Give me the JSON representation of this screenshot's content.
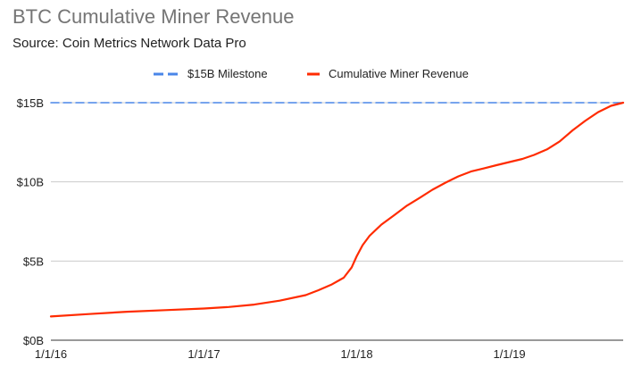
{
  "chart_data": {
    "type": "line",
    "title": "BTC Cumulative Miner Revenue",
    "subtitle": "Source: Coin Metrics Network Data Pro",
    "x_ticks": [
      "1/1/16",
      "1/1/17",
      "1/1/18",
      "1/1/19"
    ],
    "y_ticks": [
      "$0B",
      "$5B",
      "$10B",
      "$15B"
    ],
    "xlim": [
      "2016-01-01",
      "2019-09-30"
    ],
    "ylim": [
      0,
      15
    ],
    "grid": true,
    "legend_position": "top",
    "series": [
      {
        "name": "$15B Milestone",
        "style": "dashed",
        "color": "#4a86e8",
        "x": [
          "2016-01-01",
          "2019-09-30"
        ],
        "y": [
          15,
          15
        ]
      },
      {
        "name": "Cumulative Miner Revenue",
        "style": "solid",
        "color": "#ff2b00",
        "x": [
          "2016-01-01",
          "2016-04-01",
          "2016-07-01",
          "2016-10-01",
          "2017-01-01",
          "2017-03-01",
          "2017-05-01",
          "2017-07-01",
          "2017-09-01",
          "2017-10-01",
          "2017-11-01",
          "2017-12-01",
          "2017-12-20",
          "2018-01-01",
          "2018-01-15",
          "2018-02-01",
          "2018-03-01",
          "2018-04-01",
          "2018-05-01",
          "2018-06-01",
          "2018-07-01",
          "2018-08-01",
          "2018-09-01",
          "2018-10-01",
          "2018-11-01",
          "2018-12-01",
          "2019-01-01",
          "2019-02-01",
          "2019-03-01",
          "2019-04-01",
          "2019-05-01",
          "2019-06-01",
          "2019-07-01",
          "2019-08-01",
          "2019-09-01",
          "2019-09-30"
        ],
        "y": [
          1.5,
          1.65,
          1.8,
          1.9,
          2.0,
          2.1,
          2.25,
          2.5,
          2.85,
          3.15,
          3.5,
          3.95,
          4.6,
          5.3,
          6.0,
          6.6,
          7.3,
          7.9,
          8.5,
          9.0,
          9.5,
          9.95,
          10.35,
          10.65,
          10.85,
          11.05,
          11.25,
          11.45,
          11.7,
          12.05,
          12.55,
          13.25,
          13.85,
          14.4,
          14.8,
          15.0
        ]
      }
    ]
  }
}
